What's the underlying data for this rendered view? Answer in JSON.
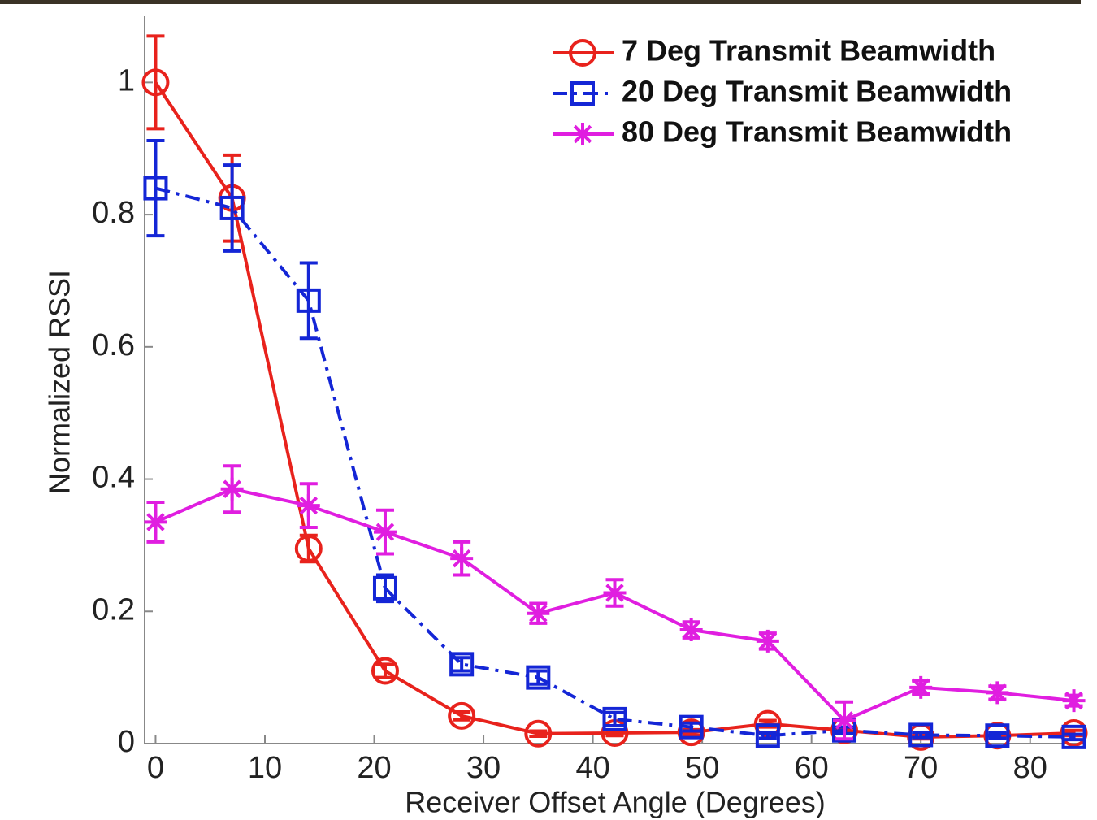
{
  "chart_data": {
    "type": "line",
    "x_label": "Receiver Offset Angle (Degrees)",
    "y_label": "Normalized RSSI",
    "x": [
      0,
      7,
      14,
      21,
      28,
      35,
      42,
      49,
      56,
      63,
      70,
      77,
      84
    ],
    "xlim": [
      -1,
      85
    ],
    "ylim": [
      0,
      1.1
    ],
    "xticks": [
      0,
      10,
      20,
      30,
      40,
      50,
      60,
      70,
      80
    ],
    "yticks": [
      0,
      0.2,
      0.4,
      0.6,
      0.8,
      1
    ],
    "legend": "upper right",
    "series": [
      {
        "name": "7 Deg Transmit Beamwidth",
        "color": "#e8221c",
        "marker": "circle",
        "dash": "solid",
        "values": [
          1.0,
          0.825,
          0.295,
          0.11,
          0.042,
          0.015,
          0.016,
          0.017,
          0.03,
          0.02,
          0.01,
          0.012,
          0.016
        ],
        "errors": [
          0.07,
          0.065,
          0.02,
          0.01,
          0.006,
          0.004,
          0.004,
          0.004,
          0.005,
          0.004,
          0.003,
          0.003,
          0.004
        ]
      },
      {
        "name": "20 Deg Transmit Beamwidth",
        "color": "#1426d6",
        "marker": "square",
        "dash": "dashdot",
        "values": [
          0.84,
          0.81,
          0.67,
          0.235,
          0.12,
          0.1,
          0.037,
          0.025,
          0.012,
          0.02,
          0.013,
          0.012,
          0.01
        ],
        "errors": [
          0.072,
          0.065,
          0.057,
          0.02,
          0.01,
          0.01,
          0.01,
          0.006,
          0.004,
          0.005,
          0.004,
          0.004,
          0.004
        ]
      },
      {
        "name": "80 Deg Transmit Beamwidth",
        "color": "#e01ee0",
        "marker": "star",
        "dash": "solid",
        "values": [
          0.335,
          0.385,
          0.36,
          0.32,
          0.28,
          0.197,
          0.228,
          0.172,
          0.155,
          0.035,
          0.085,
          0.077,
          0.065
        ],
        "errors": [
          0.03,
          0.035,
          0.033,
          0.033,
          0.025,
          0.015,
          0.02,
          0.012,
          0.012,
          0.028,
          0.01,
          0.01,
          0.008
        ]
      }
    ]
  }
}
